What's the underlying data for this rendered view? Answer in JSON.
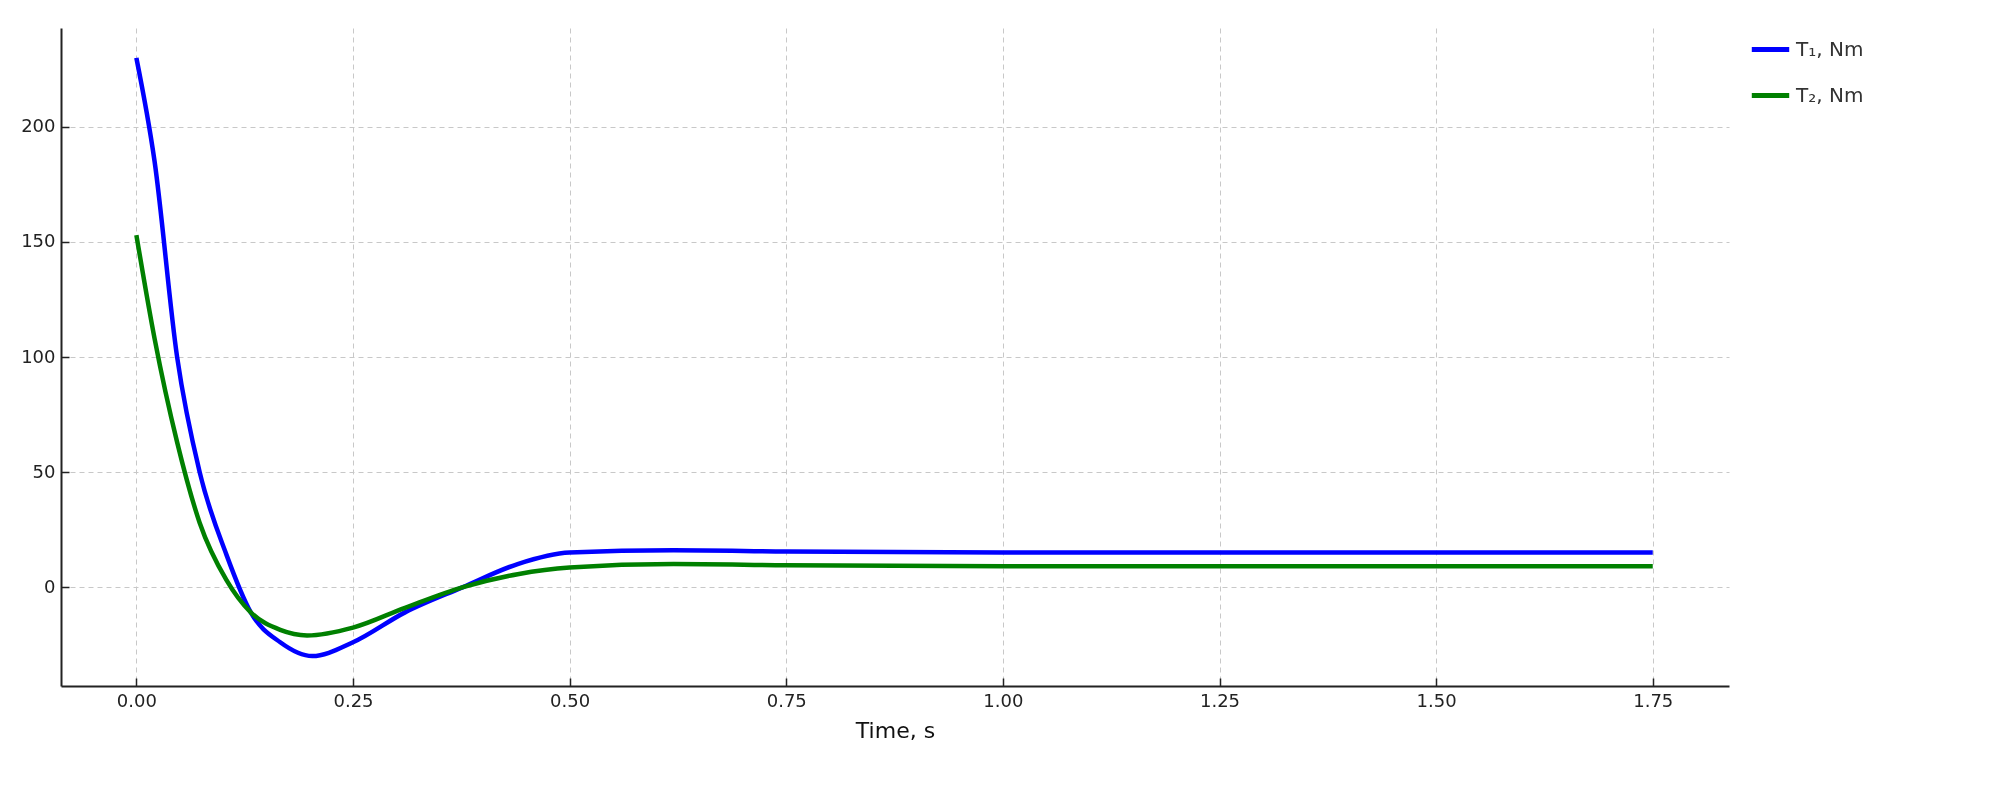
{
  "chart_data": {
    "type": "line",
    "xlabel": "Time, s",
    "xlim": [
      -0.087,
      1.838
    ],
    "xticks": [
      {
        "value": 0,
        "label": "0.00"
      },
      {
        "value": 0.25,
        "label": "0.25"
      },
      {
        "value": 0.5,
        "label": "0.50"
      },
      {
        "value": 0.75,
        "label": "0.75"
      },
      {
        "value": 1,
        "label": "1.00"
      },
      {
        "value": 1.25,
        "label": "1.25"
      },
      {
        "value": 1.5,
        "label": "1.50"
      },
      {
        "value": 1.75,
        "label": "1.75"
      }
    ],
    "ylim": [
      -43,
      243
    ],
    "yticks": [
      0,
      50,
      100,
      150,
      200
    ],
    "grid": true,
    "legend": "right",
    "series": [
      {
        "name": "T₁, Nm",
        "color": "#0000ff",
        "x": [
          0,
          0.021,
          0.047,
          0.073,
          0.104,
          0.132,
          0.166,
          0.203,
          0.25,
          0.31,
          0.377,
          0.44,
          0.5,
          0.62,
          0.75,
          1.0,
          1.25,
          1.5,
          1.75
        ],
        "values": [
          230,
          185,
          100,
          50,
          14,
          -11,
          -24,
          -30,
          -24,
          -11,
          0,
          10,
          15,
          16,
          15.5,
          15,
          15,
          15,
          15
        ]
      },
      {
        "name": "T₂, Nm",
        "color": "#008000",
        "x": [
          0,
          0.021,
          0.047,
          0.073,
          0.104,
          0.132,
          0.166,
          0.197,
          0.25,
          0.31,
          0.377,
          0.44,
          0.5,
          0.62,
          0.75,
          1.0,
          1.25,
          1.5,
          1.75
        ],
        "values": [
          153,
          108,
          63,
          28,
          3,
          -11,
          -18.6,
          -21,
          -17.6,
          -9,
          0,
          5.6,
          8.5,
          10,
          9.5,
          9,
          9,
          9,
          9
        ]
      }
    ]
  }
}
